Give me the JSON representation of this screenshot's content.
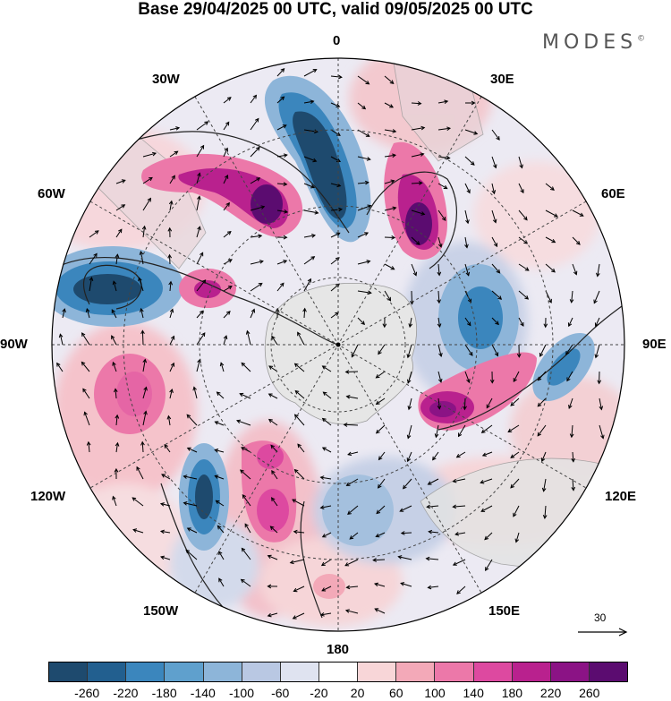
{
  "title": "Base 29/04/2025 00 UTC, valid 09/05/2025 00 UTC",
  "brand": {
    "name": "MODES",
    "mark": "©"
  },
  "longitude_labels": {
    "lon_0": "0",
    "lon_30e": "30E",
    "lon_60e": "60E",
    "lon_90e": "90E",
    "lon_120e": "120E",
    "lon_150e": "150E",
    "lon_180": "180",
    "lon_150w": "150W",
    "lon_120w": "120W",
    "lon_90w": "90W",
    "lon_60w": "60W",
    "lon_30w": "30W"
  },
  "vector_scale": {
    "label": "30"
  },
  "colorbar": {
    "colors": [
      "#1e4a6e",
      "#225f8f",
      "#3b86bd",
      "#5fa0cd",
      "#8db5d9",
      "#b9c8e3",
      "#dfe3f0",
      "#ffffff",
      "#f8d6d8",
      "#f3a9b8",
      "#ec78a9",
      "#dd49a0",
      "#b9218e",
      "#8b1385",
      "#5b0c70"
    ],
    "ticks": [
      "-260",
      "-220",
      "-180",
      "-140",
      "-100",
      "-60",
      "-20",
      "20",
      "60",
      "100",
      "140",
      "180",
      "220",
      "260"
    ]
  },
  "map": {
    "projection": "polar stereographic, south pole",
    "anomaly_blobs": [
      {
        "id": "neg-0-30w",
        "color": "#1e4a6e"
      },
      {
        "id": "neg-70w",
        "color": "#225f8f"
      },
      {
        "id": "pos-45w",
        "color": "#8b1385"
      },
      {
        "id": "pos-30e",
        "color": "#8b1385"
      },
      {
        "id": "neg-75e",
        "color": "#3b86bd"
      },
      {
        "id": "pos-100e",
        "color": "#b9218e"
      },
      {
        "id": "neg-90e",
        "color": "#5fa0cd"
      },
      {
        "id": "pos-75w",
        "color": "#dd49a0"
      },
      {
        "id": "pos-105w",
        "color": "#ec78a9"
      },
      {
        "id": "neg-125w",
        "color": "#1e4a6e"
      },
      {
        "id": "pos-145w",
        "color": "#dd49a0"
      },
      {
        "id": "neg-160e",
        "color": "#b9c8e3"
      },
      {
        "id": "pos-180",
        "color": "#f3a9b8"
      }
    ]
  }
}
